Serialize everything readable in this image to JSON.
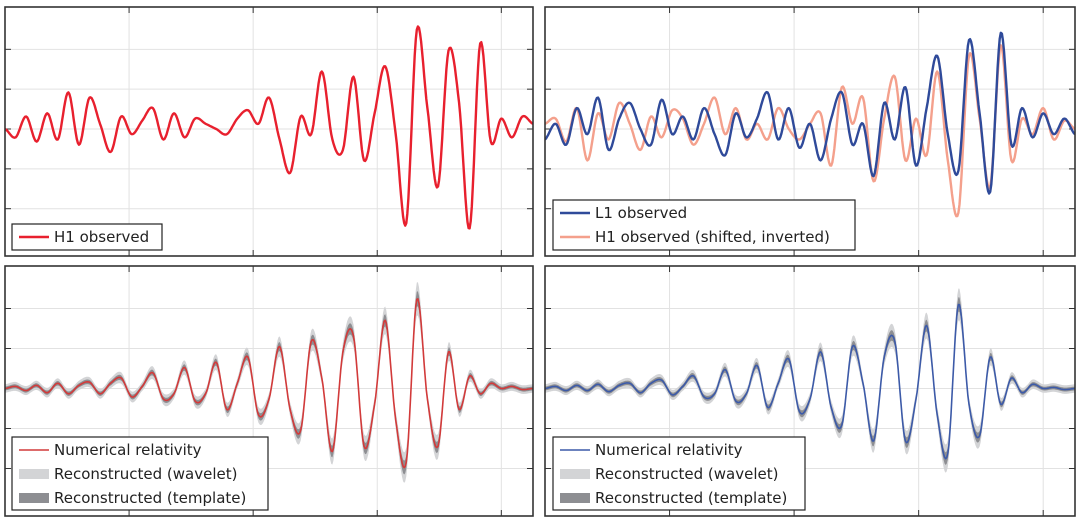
{
  "chart_data": [
    {
      "type": "line",
      "panel": "top-left",
      "xlim": [
        0,
        1
      ],
      "ylim": [
        -1.0,
        1.0
      ],
      "grid": true,
      "legend_position": "lower-left",
      "series": [
        {
          "name": "H1 observed",
          "color": "#e8202e",
          "style": "line",
          "x": [
            0.0,
            0.02,
            0.04,
            0.06,
            0.08,
            0.1,
            0.12,
            0.14,
            0.16,
            0.18,
            0.2,
            0.22,
            0.24,
            0.26,
            0.28,
            0.3,
            0.32,
            0.34,
            0.36,
            0.38,
            0.4,
            0.42,
            0.44,
            0.46,
            0.48,
            0.5,
            0.52,
            0.54,
            0.56,
            0.58,
            0.6,
            0.62,
            0.64,
            0.66,
            0.68,
            0.7,
            0.72,
            0.74,
            0.76,
            0.78,
            0.8,
            0.82,
            0.84,
            0.86,
            0.88,
            0.9,
            0.92,
            0.94,
            0.96,
            0.98,
            1.0
          ],
          "y": [
            0.0,
            -0.08,
            0.12,
            -0.12,
            0.15,
            -0.1,
            0.35,
            -0.15,
            0.3,
            0.05,
            -0.22,
            0.12,
            -0.05,
            0.08,
            0.2,
            -0.1,
            0.15,
            -0.08,
            0.1,
            0.05,
            0.0,
            -0.05,
            0.1,
            0.18,
            0.05,
            0.3,
            -0.1,
            -0.42,
            0.12,
            -0.05,
            0.55,
            -0.1,
            -0.2,
            0.5,
            -0.3,
            0.15,
            0.6,
            -0.05,
            -0.9,
            0.95,
            0.2,
            -0.55,
            0.75,
            0.25,
            -0.95,
            0.82,
            -0.12,
            0.1,
            -0.08,
            0.12,
            0.05
          ]
        },
        {
          "name": "",
          "color": "#e8202e",
          "style": "line",
          "x": [],
          "y": []
        }
      ]
    },
    {
      "type": "line",
      "panel": "top-right",
      "xlim": [
        0,
        1
      ],
      "ylim": [
        -1.0,
        1.0
      ],
      "grid": true,
      "legend_position": "lower-left",
      "series": [
        {
          "name": "L1 observed",
          "color": "#2f4a9a",
          "style": "line",
          "x": [
            0.0,
            0.02,
            0.04,
            0.06,
            0.08,
            0.1,
            0.12,
            0.14,
            0.16,
            0.18,
            0.2,
            0.22,
            0.24,
            0.26,
            0.28,
            0.3,
            0.32,
            0.34,
            0.36,
            0.38,
            0.4,
            0.42,
            0.44,
            0.46,
            0.48,
            0.5,
            0.52,
            0.54,
            0.56,
            0.58,
            0.6,
            0.62,
            0.64,
            0.66,
            0.68,
            0.7,
            0.72,
            0.74,
            0.76,
            0.78,
            0.8,
            0.82,
            0.84,
            0.86,
            0.88,
            0.9,
            0.92,
            0.94,
            0.96,
            0.98,
            1.0
          ],
          "y": [
            -0.1,
            0.05,
            -0.15,
            0.2,
            -0.05,
            0.3,
            -0.2,
            0.1,
            0.25,
            0.0,
            -0.15,
            0.28,
            -0.05,
            0.12,
            -0.1,
            0.2,
            -0.05,
            -0.25,
            0.15,
            -0.08,
            0.1,
            0.35,
            -0.1,
            0.2,
            -0.18,
            0.05,
            -0.3,
            0.1,
            0.35,
            -0.15,
            0.05,
            -0.45,
            0.25,
            -0.1,
            0.4,
            -0.35,
            0.2,
            0.7,
            -0.05,
            -0.4,
            0.85,
            0.15,
            -0.6,
            0.92,
            -0.15,
            0.2,
            -0.08,
            0.15,
            -0.05,
            0.1,
            -0.05
          ]
        },
        {
          "name": "H1 observed (shifted, inverted)",
          "color": "#f4a08c",
          "style": "line",
          "x": [
            0.0,
            0.02,
            0.04,
            0.06,
            0.08,
            0.1,
            0.12,
            0.14,
            0.16,
            0.18,
            0.2,
            0.22,
            0.24,
            0.26,
            0.28,
            0.3,
            0.32,
            0.34,
            0.36,
            0.38,
            0.4,
            0.42,
            0.44,
            0.46,
            0.48,
            0.5,
            0.52,
            0.54,
            0.56,
            0.58,
            0.6,
            0.62,
            0.64,
            0.66,
            0.68,
            0.7,
            0.72,
            0.74,
            0.76,
            0.78,
            0.8,
            0.82,
            0.84,
            0.86,
            0.88,
            0.9,
            0.92,
            0.94,
            0.96,
            0.98,
            1.0
          ],
          "y": [
            0.05,
            0.1,
            -0.12,
            0.2,
            -0.3,
            0.15,
            -0.1,
            0.25,
            0.05,
            -0.2,
            0.12,
            -0.08,
            0.18,
            0.1,
            -0.15,
            0.05,
            0.3,
            -0.05,
            0.2,
            -0.1,
            0.05,
            -0.1,
            0.2,
            0.0,
            -0.1,
            0.05,
            0.15,
            -0.35,
            0.4,
            0.05,
            0.3,
            -0.5,
            0.1,
            0.5,
            -0.3,
            0.1,
            -0.25,
            0.55,
            -0.3,
            -0.8,
            0.7,
            0.1,
            -0.55,
            0.8,
            -0.3,
            0.1,
            -0.05,
            0.2,
            -0.1,
            0.08,
            0.0
          ]
        }
      ]
    },
    {
      "type": "line",
      "panel": "bottom-left",
      "xlim": [
        0,
        1
      ],
      "ylim": [
        -1.0,
        1.0
      ],
      "grid": true,
      "legend_position": "lower-left",
      "series": [
        {
          "name": "Numerical relativity",
          "color": "#d23a3a",
          "style": "line",
          "x": [
            0.0,
            0.02,
            0.04,
            0.06,
            0.08,
            0.1,
            0.12,
            0.14,
            0.16,
            0.18,
            0.2,
            0.22,
            0.24,
            0.26,
            0.28,
            0.3,
            0.32,
            0.34,
            0.36,
            0.38,
            0.4,
            0.42,
            0.44,
            0.46,
            0.48,
            0.5,
            0.52,
            0.54,
            0.56,
            0.58,
            0.6,
            0.62,
            0.64,
            0.66,
            0.68,
            0.7,
            0.72,
            0.74,
            0.76,
            0.78,
            0.8,
            0.82,
            0.84,
            0.86,
            0.88,
            0.9,
            0.92,
            0.94,
            0.96,
            0.98,
            1.0
          ],
          "y": [
            0.0,
            0.02,
            -0.02,
            0.03,
            -0.04,
            0.05,
            -0.05,
            0.03,
            0.06,
            -0.05,
            0.05,
            0.1,
            -0.08,
            0.02,
            0.15,
            -0.1,
            -0.05,
            0.2,
            -0.12,
            -0.05,
            0.25,
            -0.2,
            0.05,
            0.3,
            -0.25,
            -0.1,
            0.4,
            -0.2,
            -0.4,
            0.45,
            0.1,
            -0.6,
            0.35,
            0.5,
            -0.55,
            -0.15,
            0.65,
            -0.3,
            -0.7,
            0.85,
            -0.1,
            -0.55,
            0.35,
            -0.2,
            0.12,
            -0.05,
            0.05,
            0.0,
            0.02,
            -0.01,
            0.0
          ]
        },
        {
          "name": "Reconstructed (wavelet)",
          "color": "#d3d4d6",
          "style": "band",
          "x": [],
          "y": []
        },
        {
          "name": "Reconstructed (template)",
          "color": "#8d8e92",
          "style": "band",
          "x": [],
          "y": []
        }
      ]
    },
    {
      "type": "line",
      "panel": "bottom-right",
      "xlim": [
        0,
        1
      ],
      "ylim": [
        -1.0,
        1.0
      ],
      "grid": true,
      "legend_position": "lower-left",
      "series": [
        {
          "name": "Numerical relativity",
          "color": "#3c5aa8",
          "style": "line",
          "x": [
            0.0,
            0.02,
            0.04,
            0.06,
            0.08,
            0.1,
            0.12,
            0.14,
            0.16,
            0.18,
            0.2,
            0.22,
            0.24,
            0.26,
            0.28,
            0.3,
            0.32,
            0.34,
            0.36,
            0.38,
            0.4,
            0.42,
            0.44,
            0.46,
            0.48,
            0.5,
            0.52,
            0.54,
            0.56,
            0.58,
            0.6,
            0.62,
            0.64,
            0.66,
            0.68,
            0.7,
            0.72,
            0.74,
            0.76,
            0.78,
            0.8,
            0.82,
            0.84,
            0.86,
            0.88,
            0.9,
            0.92,
            0.94,
            0.96,
            0.98,
            1.0
          ],
          "y": [
            0.0,
            0.02,
            -0.02,
            0.03,
            -0.02,
            0.04,
            -0.03,
            0.03,
            0.05,
            -0.04,
            0.05,
            0.08,
            -0.06,
            0.02,
            0.12,
            -0.08,
            -0.05,
            0.18,
            -0.12,
            -0.05,
            0.22,
            -0.18,
            0.05,
            0.28,
            -0.22,
            -0.1,
            0.35,
            -0.18,
            -0.35,
            0.4,
            0.05,
            -0.5,
            0.3,
            0.45,
            -0.5,
            -0.1,
            0.6,
            -0.25,
            -0.62,
            0.8,
            -0.15,
            -0.45,
            0.3,
            -0.15,
            0.1,
            -0.04,
            0.04,
            0.0,
            0.01,
            -0.01,
            0.0
          ]
        },
        {
          "name": "Reconstructed (wavelet)",
          "color": "#d3d4d6",
          "style": "band",
          "x": [],
          "y": []
        },
        {
          "name": "Reconstructed (template)",
          "color": "#8d8e92",
          "style": "band",
          "x": [],
          "y": []
        }
      ]
    }
  ]
}
